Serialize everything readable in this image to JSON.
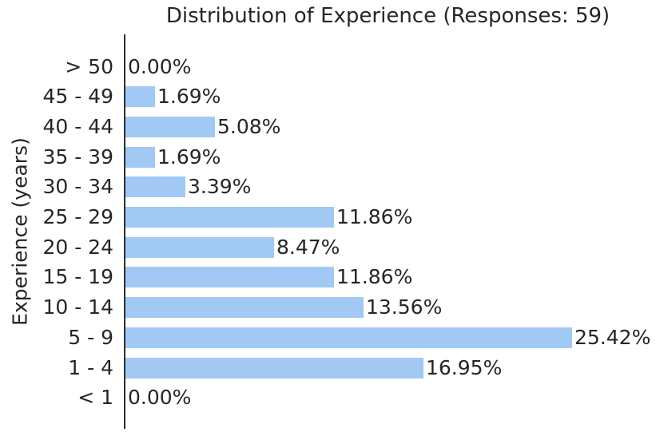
{
  "colors": {
    "bar": "#a1c9f4",
    "axis": "#2e2e2e",
    "text": "#262626"
  },
  "chart_data": {
    "type": "bar",
    "orientation": "horizontal",
    "title": "Distribution of Experience (Responses: 59)",
    "ylabel": "Experience (years)",
    "xlabel": "",
    "responses_total": 59,
    "categories": [
      "> 50",
      "45 - 49",
      "40 - 44",
      "35 - 39",
      "30 - 34",
      "25 - 29",
      "20 - 24",
      "15 - 19",
      "10 - 14",
      "5 - 9",
      "1 - 4",
      "< 1"
    ],
    "values": [
      0.0,
      1.69,
      5.08,
      1.69,
      3.39,
      11.86,
      8.47,
      11.86,
      13.56,
      25.42,
      16.95,
      0.0
    ],
    "value_labels": [
      "0.00%",
      "1.69%",
      "5.08%",
      "1.69%",
      "3.39%",
      "11.86%",
      "8.47%",
      "11.86%",
      "13.56%",
      "25.42%",
      "16.95%",
      "0.00%"
    ],
    "xlim": [
      0,
      28.8
    ],
    "grid": false,
    "legend": null
  }
}
